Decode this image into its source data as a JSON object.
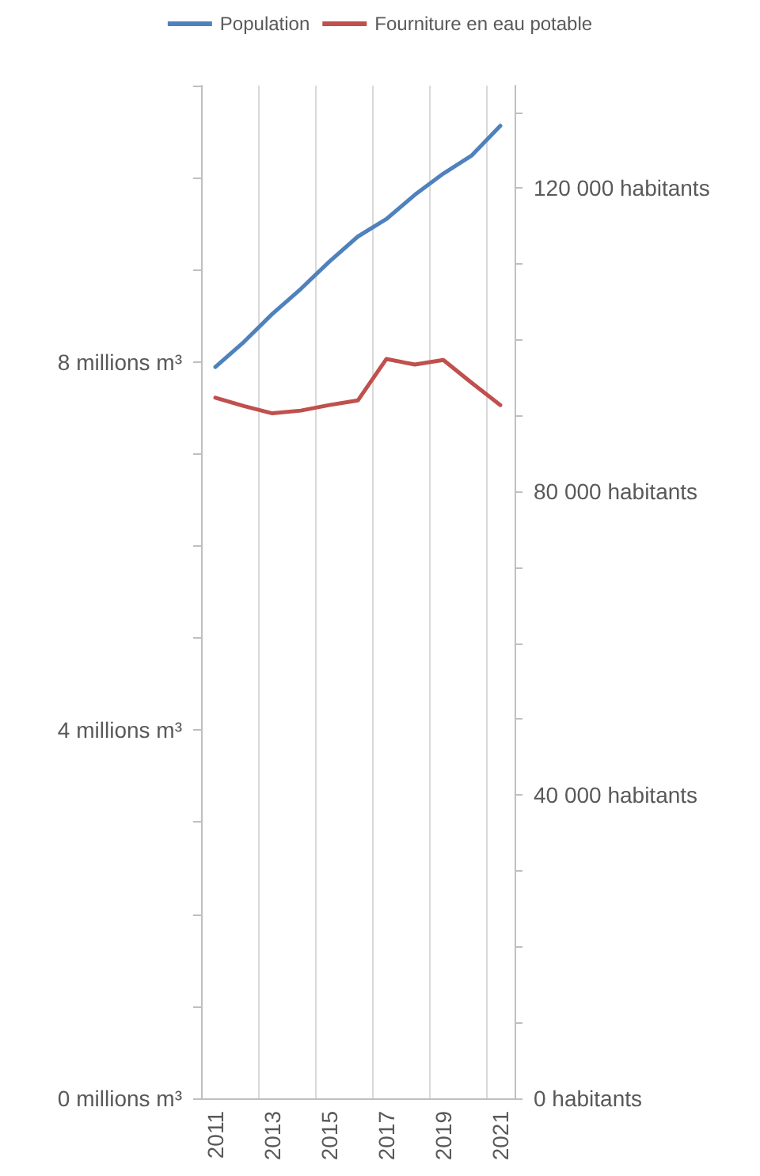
{
  "chart_data": {
    "type": "line",
    "categories": [
      "2011",
      null,
      "2013",
      null,
      "2015",
      null,
      "2017",
      null,
      "2019",
      null,
      "2021"
    ],
    "series": [
      {
        "name": "Population",
        "color": "#4f81bd",
        "axis": "y2",
        "values": [
          96400,
          99700,
          103400,
          106700,
          110300,
          113600,
          115900,
          119100,
          121900,
          124300,
          128200
        ]
      },
      {
        "name": "Fourniture en eau potable",
        "color": "#c0504d",
        "values": [
          7.61,
          7.52,
          7.44,
          7.47,
          7.53,
          7.58,
          8.03,
          7.97,
          8.02,
          7.77,
          7.53
        ]
      }
    ],
    "ylim": [
      0,
      11
    ],
    "yticks": [
      {
        "value": 0,
        "label": "0 millions m³"
      },
      {
        "value": 1,
        "label": null
      },
      {
        "value": 2,
        "label": null
      },
      {
        "value": 3,
        "label": null
      },
      {
        "value": 4,
        "label": "4 millions m³"
      },
      {
        "value": 5,
        "label": null
      },
      {
        "value": 6,
        "label": null
      },
      {
        "value": 7,
        "label": null
      },
      {
        "value": 8,
        "label": "8 millions m³"
      },
      {
        "value": 9,
        "label": null
      },
      {
        "value": 10,
        "label": null
      },
      {
        "value": 11,
        "label": null
      }
    ],
    "y2lim": [
      0,
      133500
    ],
    "y2ticks": [
      {
        "value": 0,
        "label": "0 habitants"
      },
      {
        "value": 10000,
        "label": null
      },
      {
        "value": 20000,
        "label": null
      },
      {
        "value": 30000,
        "label": null
      },
      {
        "value": 40000,
        "label": "40 000 habitants"
      },
      {
        "value": 50000,
        "label": null
      },
      {
        "value": 60000,
        "label": null
      },
      {
        "value": 70000,
        "label": null
      },
      {
        "value": 80000,
        "label": "80 000 habitants"
      },
      {
        "value": 90000,
        "label": null
      },
      {
        "value": 100000,
        "label": null
      },
      {
        "value": 110000,
        "label": null
      },
      {
        "value": 120000,
        "label": "120 000 habitants"
      },
      {
        "value": 130000,
        "label": null
      }
    ],
    "grid": "x",
    "legend": "top",
    "marker": "none",
    "line_style": "solid"
  }
}
